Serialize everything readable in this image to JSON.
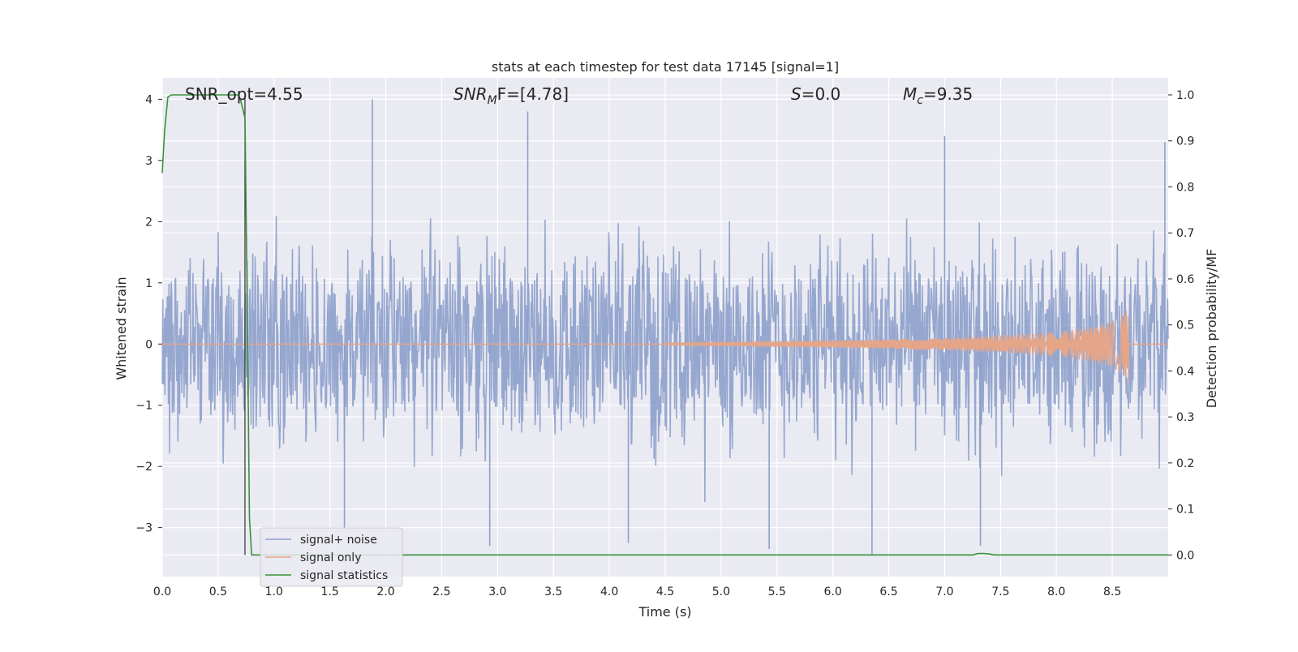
{
  "chart_data": {
    "type": "line",
    "title": "stats at each timestep for test data 17145 [signal=1]",
    "xlabel": "Time (s)",
    "ylabel_left": "Whitened strain",
    "ylabel_right": "Detection probability/MF",
    "xlim": [
      0.0,
      9.0
    ],
    "ylim_left": [
      -3.8,
      4.35
    ],
    "ylim_right": [
      -0.047,
      1.037
    ],
    "xticks": [
      "0.0",
      "0.5",
      "1.0",
      "1.5",
      "2.0",
      "2.5",
      "3.0",
      "3.5",
      "4.0",
      "4.5",
      "5.0",
      "5.5",
      "6.0",
      "6.5",
      "7.0",
      "7.5",
      "8.0",
      "8.5"
    ],
    "yticks_left": [
      "4",
      "3",
      "2",
      "1",
      "0",
      "−1",
      "−2",
      "−3"
    ],
    "yticks_right": [
      "1.0",
      "0.9",
      "0.8",
      "0.7",
      "0.6",
      "0.5",
      "0.4",
      "0.3",
      "0.2",
      "0.1",
      "0.0"
    ],
    "grid": true,
    "legend_position": "lower-left",
    "annotations": {
      "snr_opt": "SNR_opt=4.55",
      "snr_mf_prefix": "SNR",
      "snr_mf_sub": "M",
      "snr_mf_suffix": "F=[4.78]",
      "s_prefix": "S",
      "s_suffix": "=0.0",
      "mc_prefix": "M",
      "mc_sub": "c",
      "mc_suffix": "=9.35"
    },
    "series": [
      {
        "name": "signal+ noise",
        "axis": "left",
        "color": "#8da0cb",
        "description_values": {
          "band_typical": [
            -1.8,
            1.8
          ],
          "spikes": [
            {
              "x": 1.88,
              "y": 4.0
            },
            {
              "x": 3.27,
              "y": 3.8
            },
            {
              "x": 6.35,
              "y": -3.45
            },
            {
              "x": 7.0,
              "y": 3.4
            },
            {
              "x": 8.97,
              "y": 3.3
            },
            {
              "x": 1.63,
              "y": -3.05
            },
            {
              "x": 2.93,
              "y": -3.3
            },
            {
              "x": 4.17,
              "y": -3.25
            },
            {
              "x": 5.43,
              "y": -3.35
            },
            {
              "x": 7.32,
              "y": -3.3
            }
          ]
        }
      },
      {
        "name": "signal only",
        "axis": "left",
        "color": "#e5a589",
        "description_values": {
          "zero_until": 4.5,
          "envelope": [
            [
              4.5,
              0.02
            ],
            [
              6.0,
              0.06
            ],
            [
              7.0,
              0.1
            ],
            [
              7.5,
              0.14
            ],
            [
              8.0,
              0.2
            ],
            [
              8.3,
              0.28
            ],
            [
              8.5,
              0.38
            ],
            [
              8.6,
              0.5
            ],
            [
              8.65,
              0.68
            ]
          ],
          "merger_time": 8.65
        }
      },
      {
        "name": "signal statistics",
        "axis": "right",
        "color": "#3a923a",
        "x": [
          0.0,
          0.02,
          0.05,
          0.08,
          0.1,
          0.2,
          0.3,
          0.4,
          0.5,
          0.6,
          0.68,
          0.7,
          0.72,
          0.74,
          0.76,
          0.78,
          0.8,
          1.0,
          2.0,
          3.0,
          4.0,
          5.0,
          6.0,
          7.0,
          7.25,
          7.3,
          7.35,
          7.4,
          7.45,
          8.0,
          8.5,
          9.0
        ],
        "values": [
          0.83,
          0.92,
          0.995,
          1.0,
          1.0,
          1.0,
          1.0,
          1.0,
          1.0,
          1.0,
          1.0,
          0.99,
          0.97,
          0.95,
          0.55,
          0.08,
          0.0,
          0.0,
          0.0,
          0.0,
          0.0,
          0.0,
          0.0,
          0.0,
          0.0,
          0.003,
          0.003,
          0.002,
          0.0,
          0.0,
          0.0,
          0.0
        ]
      }
    ],
    "vline": {
      "x": 0.74,
      "ymin_right": 0.0,
      "ymax_right": 1.0,
      "color": "#333333"
    }
  }
}
